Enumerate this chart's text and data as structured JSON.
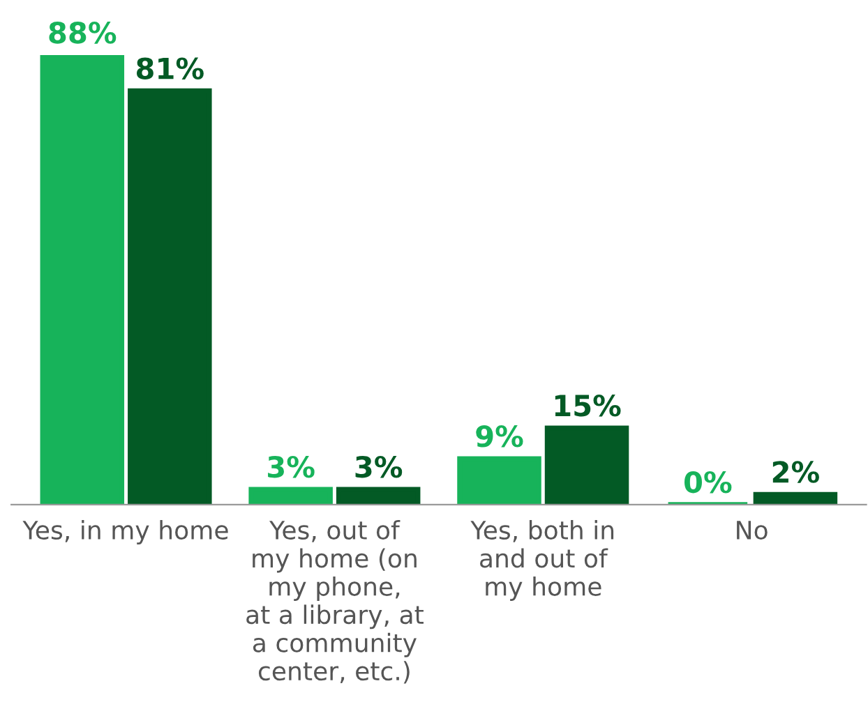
{
  "chart_data": {
    "type": "bar",
    "categories": [
      "Yes, in my home",
      "Yes, out of\nmy home (on\nmy phone,\nat a library, at\na community\ncenter, etc.)",
      "Yes, both in\nand out of\nmy home",
      "No"
    ],
    "series": [
      {
        "color": "#17b35a",
        "values": [
          88,
          3,
          9,
          0
        ],
        "value_labels": [
          "88%",
          "3%",
          "9%",
          "0%"
        ]
      },
      {
        "color": "#035a25",
        "values": [
          81,
          3,
          15,
          2
        ],
        "value_labels": [
          "81%",
          "3%",
          "15%",
          "2%"
        ]
      }
    ],
    "grid": false,
    "legend": false
  }
}
